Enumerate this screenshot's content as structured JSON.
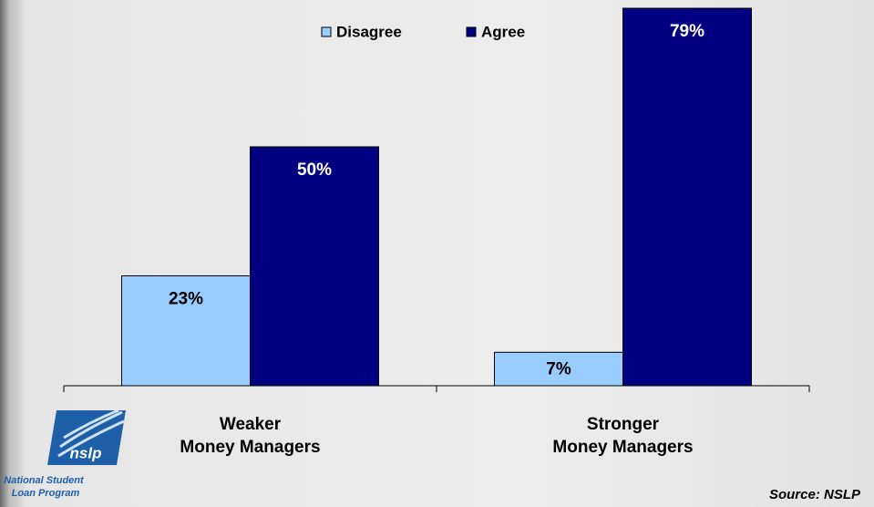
{
  "chart_data": {
    "type": "bar",
    "categories": [
      "Weaker\nMoney Managers",
      "Stronger\nMoney Managers"
    ],
    "series": [
      {
        "name": "Disagree",
        "color": "#99ccff",
        "values": [
          23,
          7
        ],
        "value_labels": [
          "23%",
          "7%"
        ]
      },
      {
        "name": "Agree",
        "color": "#000080",
        "values": [
          50,
          79
        ],
        "value_labels": [
          "50%",
          "79%"
        ]
      }
    ],
    "source": "Source: NSLP",
    "logo": {
      "mark": "nslp",
      "line1": "National Student",
      "line2": "Loan Program"
    }
  }
}
